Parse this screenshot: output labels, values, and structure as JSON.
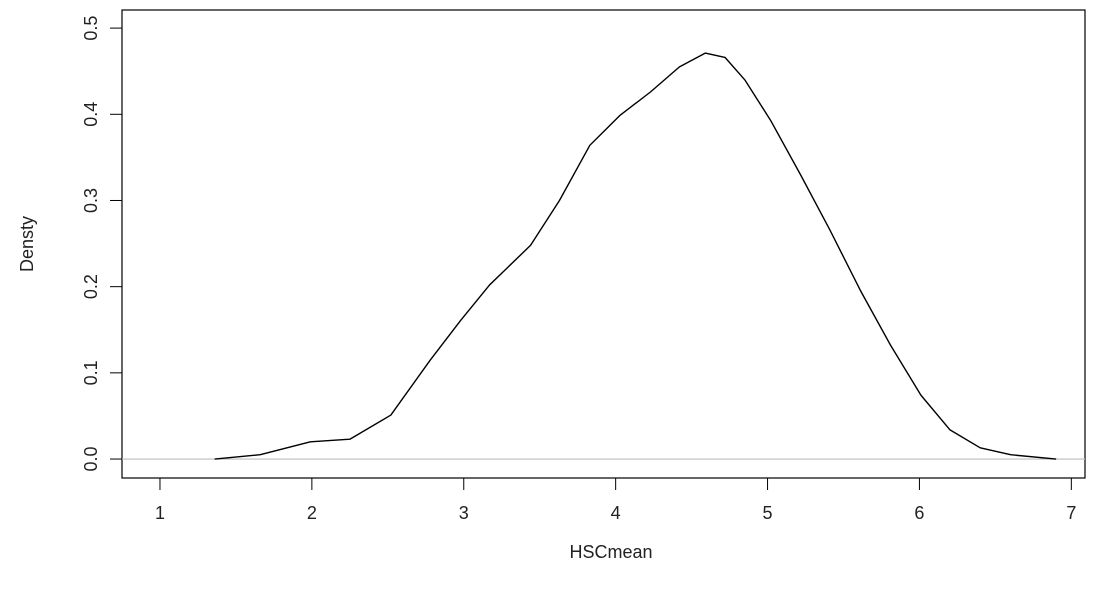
{
  "chart_data": {
    "type": "line",
    "x_label": "HSCmean",
    "y_label": "Densty",
    "x": [
      1.36,
      1.66,
      1.99,
      2.25,
      2.52,
      2.78,
      2.98,
      3.17,
      3.44,
      3.63,
      3.83,
      4.03,
      4.23,
      4.42,
      4.59,
      4.72,
      4.85,
      5.02,
      5.22,
      5.41,
      5.61,
      5.81,
      6.01,
      6.2,
      6.4,
      6.6,
      6.9
    ],
    "values": [
      0.0,
      0.005,
      0.02,
      0.023,
      0.051,
      0.115,
      0.161,
      0.202,
      0.248,
      0.3,
      0.364,
      0.399,
      0.426,
      0.455,
      0.471,
      0.466,
      0.44,
      0.393,
      0.329,
      0.266,
      0.196,
      0.132,
      0.074,
      0.034,
      0.013,
      0.005,
      0.0
    ],
    "color": "#000000",
    "reference_line": {
      "value": 0,
      "color": "#bebebe"
    },
    "xlim": [
      0.75,
      7.09
    ],
    "ylim": [
      -0.022,
      0.521
    ],
    "xticks": [
      1,
      2,
      3,
      4,
      5,
      6,
      7
    ],
    "yticks": [
      {
        "value": 0,
        "label": "0.0"
      },
      0.1,
      0.2,
      0.3,
      0.4,
      0.5
    ],
    "grid": false
  }
}
